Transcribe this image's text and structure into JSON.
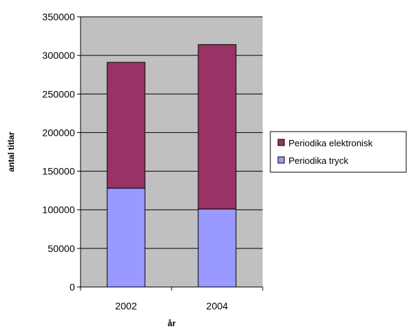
{
  "chart_data": {
    "type": "bar",
    "stacked": true,
    "categories": [
      "2002",
      "2004"
    ],
    "series": [
      {
        "name": "Periodika tryck",
        "values": [
          128000,
          101000
        ],
        "color": "#9999ff"
      },
      {
        "name": "Periodika elektronisk",
        "values": [
          163000,
          213000
        ],
        "color": "#993366"
      }
    ],
    "title": "",
    "xlabel": "år",
    "ylabel": "antal titlar",
    "ylim": [
      0,
      350000
    ],
    "yticks": [
      0,
      50000,
      100000,
      150000,
      200000,
      250000,
      300000,
      350000
    ],
    "grid": true,
    "legend_position": "right",
    "plot_background": "#c0c0c0"
  }
}
